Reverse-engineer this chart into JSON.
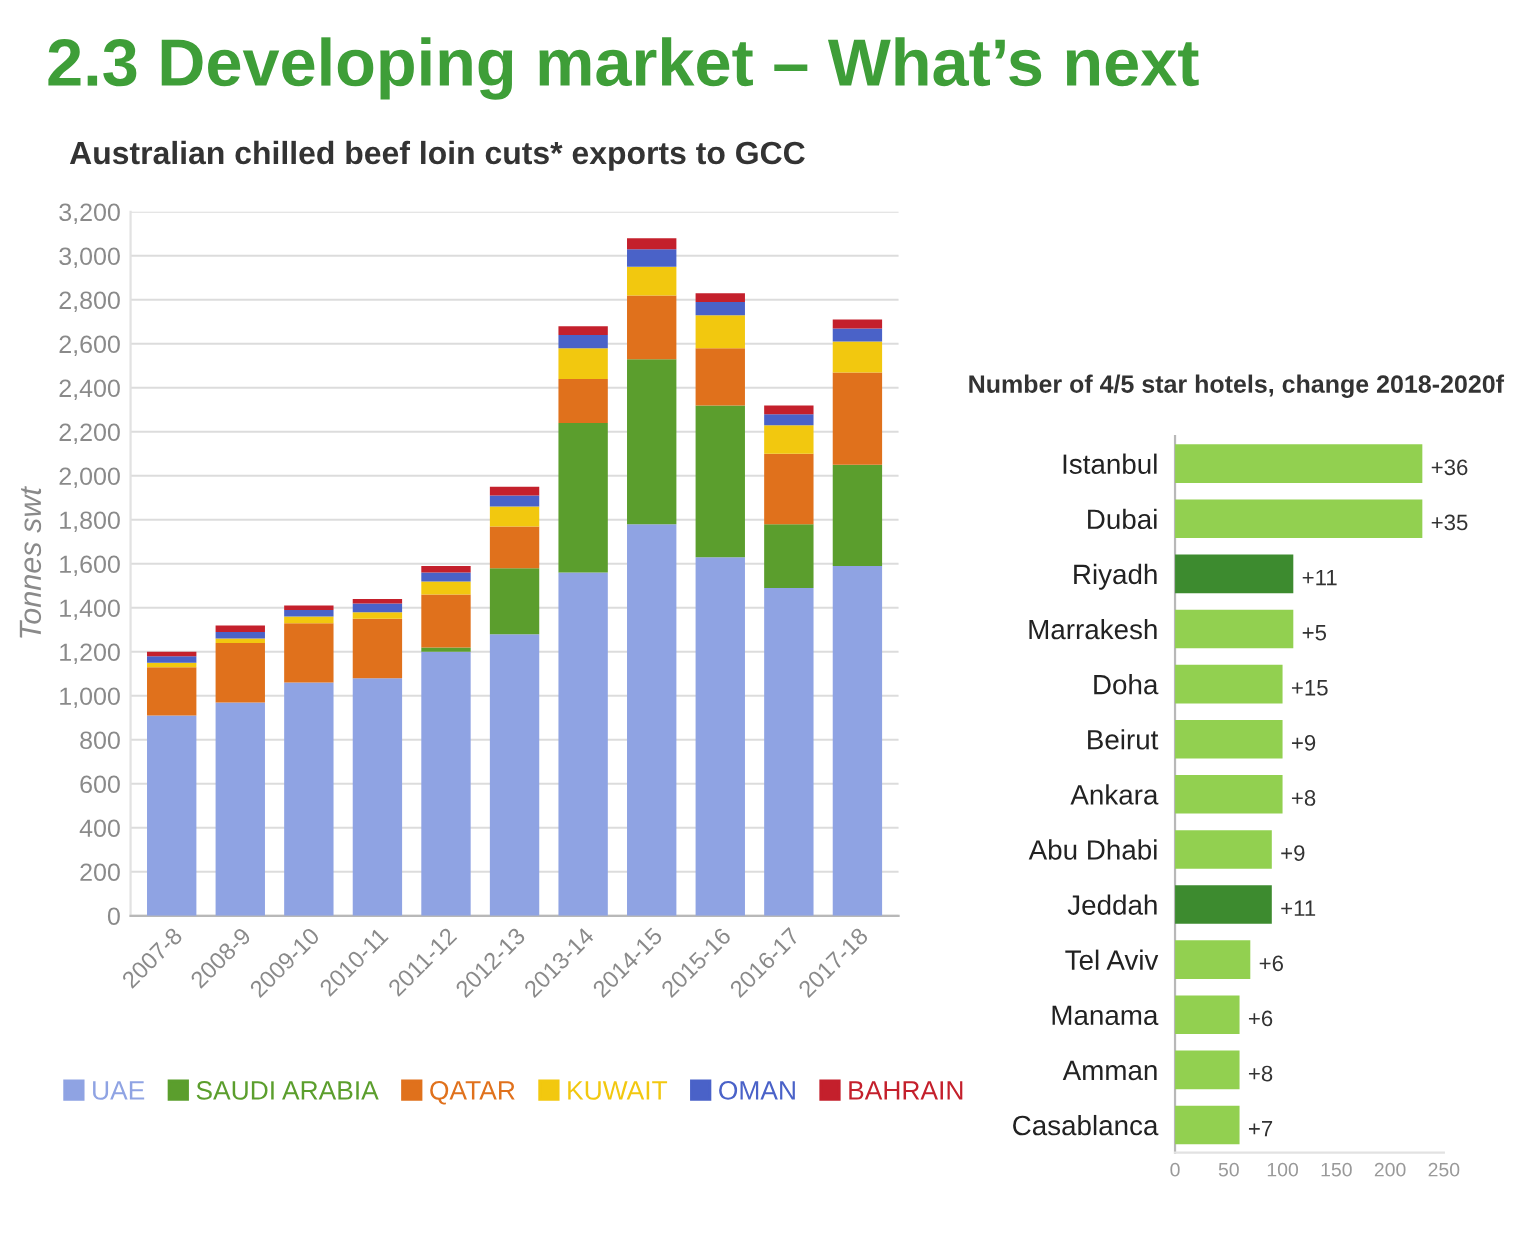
{
  "chart_data": [
    {
      "type": "bar",
      "title": "2.3 Developing market – What’s next",
      "subtitle": "Australian chilled beef loin cuts* exports to GCC",
      "ylabel": "Tonnes swt",
      "categories": [
        "2007-8",
        "2008-9",
        "2009-10",
        "2010-11",
        "2011-12",
        "2012-13",
        "2013-14",
        "2014-15",
        "2015-16",
        "2016-17",
        "2017-18"
      ],
      "stacked": true,
      "series": [
        {
          "name": "UAE",
          "color": "#8fa3e3",
          "values": [
            910,
            970,
            1060,
            1080,
            1200,
            1280,
            1560,
            1780,
            1630,
            1490,
            1590
          ]
        },
        {
          "name": "SAUDI ARABIA",
          "color": "#5b9e2d",
          "values": [
            0,
            0,
            0,
            0,
            20,
            300,
            680,
            750,
            690,
            290,
            460
          ]
        },
        {
          "name": "QATAR",
          "color": "#e0711c",
          "values": [
            220,
            270,
            270,
            270,
            240,
            190,
            200,
            290,
            260,
            320,
            420
          ]
        },
        {
          "name": "KUWAIT",
          "color": "#f2c80f",
          "values": [
            20,
            20,
            30,
            30,
            60,
            90,
            140,
            130,
            150,
            130,
            140
          ]
        },
        {
          "name": "OMAN",
          "color": "#4a62c8",
          "values": [
            30,
            30,
            30,
            40,
            40,
            50,
            60,
            80,
            60,
            50,
            60
          ]
        },
        {
          "name": "BAHRAIN",
          "color": "#c4202c",
          "values": [
            20,
            30,
            20,
            20,
            30,
            40,
            40,
            50,
            40,
            40,
            40
          ]
        }
      ],
      "ylim": [
        0,
        3200
      ],
      "yticks": [
        0,
        200,
        400,
        600,
        800,
        {
          "value": 1000,
          "label": "1,000"
        },
        {
          "value": 1200,
          "label": "1,200"
        },
        {
          "value": 1400,
          "label": "1,400"
        },
        {
          "value": 1600,
          "label": "1,600"
        },
        {
          "value": 1800,
          "label": "1,800"
        },
        {
          "value": 2000,
          "label": "2,000"
        },
        {
          "value": 2200,
          "label": "2,200"
        },
        {
          "value": 2400,
          "label": "2,400"
        },
        {
          "value": 2600,
          "label": "2,600"
        },
        {
          "value": 2800,
          "label": "2,800"
        },
        {
          "value": 3000,
          "label": "3,000"
        },
        {
          "value": 3200,
          "label": "3,200"
        }
      ],
      "grid": "y",
      "legend": "bottom"
    },
    {
      "type": "bar",
      "orientation": "horizontal",
      "title": "Number of 4/5 star hotels, change 2018-2020f",
      "categories": [
        "Istanbul",
        "Dubai",
        "Riyadh",
        "Marrakesh",
        "Doha",
        "Beirut",
        "Ankara",
        "Abu Dhabi",
        "Jeddah",
        "Tel Aviv",
        "Manama",
        "Amman",
        "Casablanca"
      ],
      "values": [
        230,
        230,
        110,
        110,
        100,
        100,
        100,
        90,
        90,
        70,
        60,
        60,
        60
      ],
      "colors": [
        "#92d050",
        "#92d050",
        "#3d8b2f",
        "#92d050",
        "#92d050",
        "#92d050",
        "#92d050",
        "#92d050",
        "#3d8b2f",
        "#92d050",
        "#92d050",
        "#92d050",
        "#92d050"
      ],
      "annotations": [
        {
          "text": "+36",
          "x": 230,
          "y": "Istanbul"
        },
        {
          "text": "+35",
          "x": 230,
          "y": "Dubai"
        },
        {
          "text": "+11",
          "x": 110,
          "y": "Riyadh"
        },
        {
          "text": "+5",
          "x": 110,
          "y": "Marrakesh"
        },
        {
          "text": "+15",
          "x": 100,
          "y": "Doha"
        },
        {
          "text": "+9",
          "x": 100,
          "y": "Beirut"
        },
        {
          "text": "+8",
          "x": 100,
          "y": "Ankara"
        },
        {
          "text": "+9",
          "x": 90,
          "y": "Abu Dhabi"
        },
        {
          "text": "+11",
          "x": 90,
          "y": "Jeddah"
        },
        {
          "text": "+6",
          "x": 70,
          "y": "Tel Aviv"
        },
        {
          "text": "+6",
          "x": 60,
          "y": "Manama"
        },
        {
          "text": "+8",
          "x": 60,
          "y": "Amman"
        },
        {
          "text": "+7",
          "x": 60,
          "y": "Casablanca"
        }
      ],
      "xlim": [
        0,
        250
      ],
      "xticks": [
        0,
        50,
        100,
        150,
        200,
        250
      ]
    }
  ]
}
